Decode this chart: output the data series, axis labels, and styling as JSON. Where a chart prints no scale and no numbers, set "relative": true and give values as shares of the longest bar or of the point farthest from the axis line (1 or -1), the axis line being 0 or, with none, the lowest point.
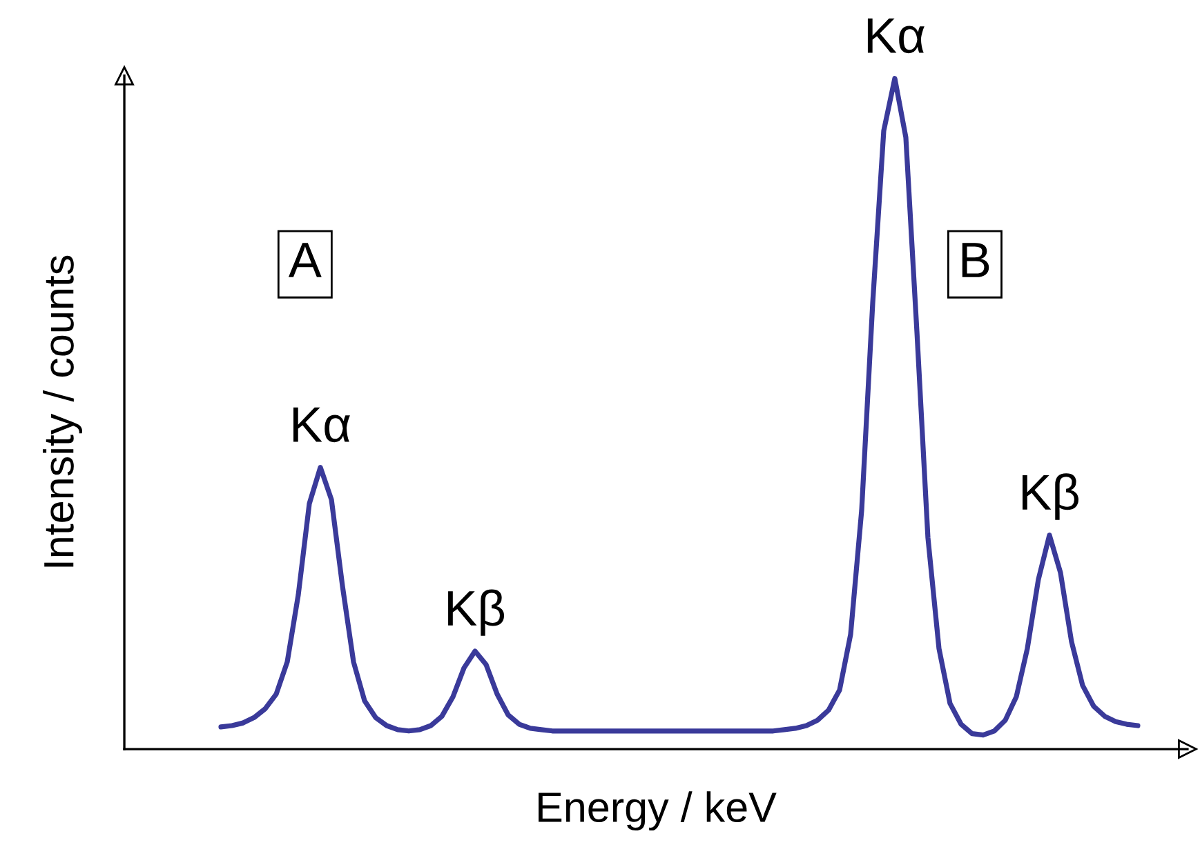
{
  "chart_data": {
    "type": "line",
    "relative": true,
    "xlabel": "Energy / keV",
    "ylabel": "Intensity / counts",
    "categories": [
      null,
      null,
      null,
      null,
      null,
      null,
      null,
      null,
      null,
      null,
      null,
      null,
      null,
      null,
      null,
      null,
      null,
      null,
      null,
      null,
      null,
      null,
      null,
      null,
      null,
      null,
      null,
      null,
      null,
      null,
      null,
      null,
      null,
      null,
      null,
      null,
      null,
      null,
      null,
      null,
      null,
      null,
      null,
      null,
      null,
      null,
      null,
      null,
      null,
      null,
      null,
      null,
      null,
      null,
      null,
      null,
      null,
      null,
      null,
      null,
      null,
      null,
      null,
      null,
      null,
      null,
      null,
      null,
      null,
      null,
      null,
      null,
      null,
      null,
      null,
      null,
      null,
      null,
      null,
      null,
      null,
      null,
      null,
      null
    ],
    "series": [
      {
        "color": "#3a3a9a",
        "values": [
          0.033,
          0.035,
          0.039,
          0.047,
          0.06,
          0.082,
          0.13,
          0.23,
          0.366,
          0.42,
          0.372,
          0.243,
          0.13,
          0.072,
          0.047,
          0.035,
          0.029,
          0.027,
          0.029,
          0.035,
          0.049,
          0.078,
          0.121,
          0.146,
          0.126,
          0.082,
          0.051,
          0.037,
          0.031,
          0.029,
          0.027,
          0.027,
          0.027,
          0.027,
          0.027,
          0.027,
          0.027,
          0.027,
          0.027,
          0.027,
          0.027,
          0.027,
          0.027,
          0.027,
          0.027,
          0.027,
          0.027,
          0.027,
          0.027,
          0.027,
          0.027,
          0.029,
          0.031,
          0.035,
          0.043,
          0.058,
          0.088,
          0.171,
          0.356,
          0.665,
          0.922,
          1,
          0.912,
          0.623,
          0.315,
          0.15,
          0.068,
          0.037,
          0.023,
          0.021,
          0.027,
          0.043,
          0.078,
          0.15,
          0.253,
          0.319,
          0.263,
          0.16,
          0.095,
          0.064,
          0.049,
          0.041,
          0.037,
          0.035
        ]
      }
    ],
    "annotations": [
      "A",
      "B",
      "Kα",
      "Kβ",
      "Kα",
      "Kβ"
    ],
    "marker": "none",
    "line_style": "solid"
  }
}
